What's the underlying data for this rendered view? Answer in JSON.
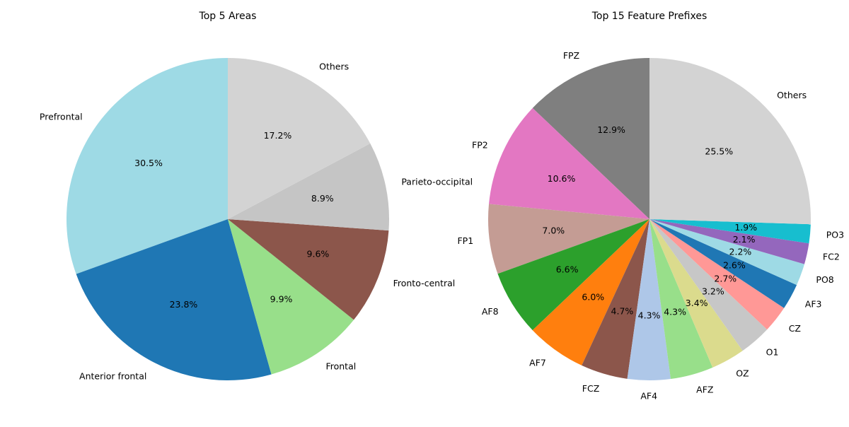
{
  "chart_data": [
    {
      "type": "pie",
      "title": "Top 5 Areas",
      "start_angle": 90,
      "counterclock": true,
      "slices": [
        {
          "label": "Prefrontal",
          "value": 30.5,
          "pct_label": "30.5%",
          "color": "#9edae5"
        },
        {
          "label": "Anterior frontal",
          "value": 23.8,
          "pct_label": "23.8%",
          "color": "#1f77b4"
        },
        {
          "label": "Frontal",
          "value": 9.9,
          "pct_label": "9.9%",
          "color": "#98df8a"
        },
        {
          "label": "Fronto-central",
          "value": 9.6,
          "pct_label": "9.6%",
          "color": "#8c564b"
        },
        {
          "label": "Parieto-occipital",
          "value": 8.9,
          "pct_label": "8.9%",
          "color": "#c5c5c5"
        },
        {
          "label": "Others",
          "value": 17.2,
          "pct_label": "17.2%",
          "color": "#d3d3d3"
        }
      ]
    },
    {
      "type": "pie",
      "title": "Top 15 Feature Prefixes",
      "start_angle": 90,
      "counterclock": true,
      "slices": [
        {
          "label": "FPZ",
          "value": 12.9,
          "pct_label": "12.9%",
          "color": "#7f7f7f"
        },
        {
          "label": "FP2",
          "value": 10.6,
          "pct_label": "10.6%",
          "color": "#e377c2"
        },
        {
          "label": "FP1",
          "value": 7.0,
          "pct_label": "7.0%",
          "color": "#c49c94"
        },
        {
          "label": "AF8",
          "value": 6.6,
          "pct_label": "6.6%",
          "color": "#2ca02c"
        },
        {
          "label": "AF7",
          "value": 6.0,
          "pct_label": "6.0%",
          "color": "#ff7f0e"
        },
        {
          "label": "FCZ",
          "value": 4.7,
          "pct_label": "4.7%",
          "color": "#8c564b"
        },
        {
          "label": "AF4",
          "value": 4.3,
          "pct_label": "4.3%",
          "color": "#aec7e8"
        },
        {
          "label": "AFZ",
          "value": 4.3,
          "pct_label": "4.3%",
          "color": "#98df8a"
        },
        {
          "label": "OZ",
          "value": 3.4,
          "pct_label": "3.4%",
          "color": "#dbdb8d"
        },
        {
          "label": "O1",
          "value": 3.2,
          "pct_label": "3.2%",
          "color": "#c7c7c7"
        },
        {
          "label": "CZ",
          "value": 2.7,
          "pct_label": "2.7%",
          "color": "#ff9896"
        },
        {
          "label": "AF3",
          "value": 2.6,
          "pct_label": "2.6%",
          "color": "#1f77b4"
        },
        {
          "label": "PO8",
          "value": 2.2,
          "pct_label": "2.2%",
          "color": "#9edae5"
        },
        {
          "label": "FC2",
          "value": 2.1,
          "pct_label": "2.1%",
          "color": "#9467bd"
        },
        {
          "label": "PO3",
          "value": 1.9,
          "pct_label": "1.9%",
          "color": "#17becf"
        },
        {
          "label": "Others",
          "value": 25.5,
          "pct_label": "25.5%",
          "color": "#d3d3d3"
        }
      ]
    }
  ]
}
